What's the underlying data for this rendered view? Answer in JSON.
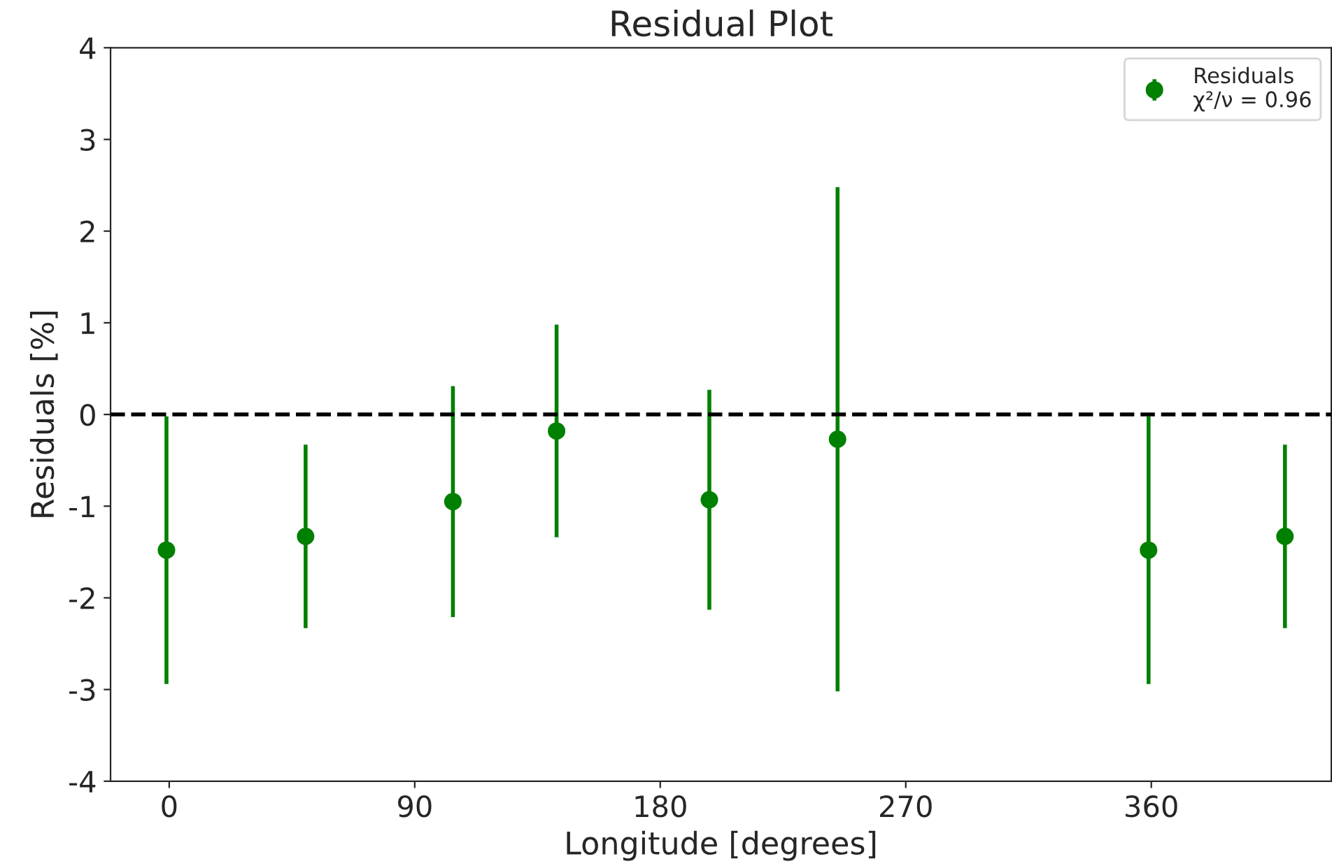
{
  "chart_data": {
    "type": "scatter",
    "title": "Residual Plot",
    "xlabel": "Longitude [degrees]",
    "ylabel": "Residuals [%]",
    "x": [
      -1,
      50,
      104,
      142,
      198,
      245,
      359,
      409
    ],
    "series": [
      {
        "name": "Residuals\nχ²/ν = 0.96",
        "color": "#008000",
        "values": [
          -1.48,
          -1.33,
          -0.95,
          -0.18,
          -0.93,
          -0.27,
          -1.48,
          -1.33
        ],
        "errors": [
          1.46,
          1.0,
          1.26,
          1.16,
          1.2,
          2.75,
          1.46,
          1.0
        ]
      }
    ],
    "xlim": [
      -21.5,
      426
    ],
    "xticks": [
      0,
      90,
      180,
      270,
      360
    ],
    "ylim": [
      -4,
      4
    ],
    "yticks": [
      -4,
      -3,
      -2,
      -1,
      0,
      1,
      2,
      3,
      4
    ],
    "ref_lines": [
      {
        "axis": "y",
        "value": 0,
        "color": "#000000",
        "line_style": "dashed"
      }
    ],
    "marker": "circle",
    "legend": "top right",
    "grid": false
  }
}
